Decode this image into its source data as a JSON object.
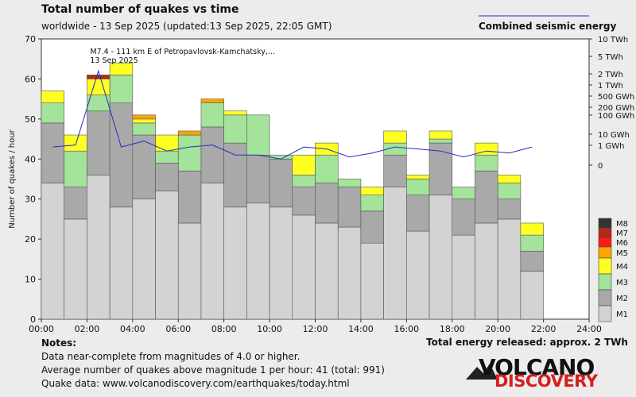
{
  "chart_data": {
    "type": "bar",
    "title": "Total number of quakes vs time",
    "subtitle": "worldwide - 13 Sep 2025 (updated:13 Sep 2025, 22:05 GMT)",
    "ylabel": "Number of quakes / hour",
    "ylim": [
      0,
      70
    ],
    "y_ticks": [
      "0",
      "10",
      "20",
      "30",
      "40",
      "50",
      "60",
      "70"
    ],
    "x_ticks": [
      "00:00",
      "02:00",
      "04:00",
      "06:00",
      "08:00",
      "10:00",
      "12:00",
      "14:00",
      "16:00",
      "18:00",
      "20:00",
      "22:00",
      "24:00"
    ],
    "right_axis_label": "Combined seismic energy",
    "right_ticks": [
      "10 TWh",
      "5 TWh",
      "2 TWh",
      "1 TWh",
      "500 GWh",
      "200 GWh",
      "100 GWh",
      "10 GWh",
      "1 GWh",
      "0"
    ],
    "magnitude_classes": [
      "M1",
      "M2",
      "M3",
      "M4",
      "M5",
      "M6",
      "M7",
      "M8"
    ],
    "colors": {
      "M1": "#d3d3d3",
      "M2": "#a9a9a9",
      "M3": "#a3e39a",
      "M4": "#ffff22",
      "M5": "#ffa500",
      "M6": "#ff1a1a",
      "M7": "#b22a18",
      "M8": "#333333",
      "energy_line": "#1f2fbf"
    },
    "series_hourly_cumulative": [
      {
        "hour": 0,
        "M1": 34,
        "M2": 49,
        "M3": 54,
        "M4": 57,
        "M5": 57,
        "M6": 57,
        "M7": 57
      },
      {
        "hour": 1,
        "M1": 25,
        "M2": 33,
        "M3": 42,
        "M4": 46,
        "M5": 46,
        "M6": 46,
        "M7": 46
      },
      {
        "hour": 2,
        "M1": 36,
        "M2": 52,
        "M3": 56,
        "M4": 60,
        "M5": 60,
        "M6": 60,
        "M7": 61
      },
      {
        "hour": 3,
        "M1": 28,
        "M2": 54,
        "M3": 61,
        "M4": 64,
        "M5": 64,
        "M6": 64,
        "M7": 64
      },
      {
        "hour": 4,
        "M1": 30,
        "M2": 46,
        "M3": 49,
        "M4": 50,
        "M5": 51,
        "M6": 51,
        "M7": 51
      },
      {
        "hour": 5,
        "M1": 32,
        "M2": 39,
        "M3": 42,
        "M4": 46,
        "M5": 46,
        "M6": 46,
        "M7": 46
      },
      {
        "hour": 6,
        "M1": 24,
        "M2": 37,
        "M3": 46,
        "M4": 46,
        "M5": 47,
        "M6": 47,
        "M7": 47
      },
      {
        "hour": 7,
        "M1": 34,
        "M2": 48,
        "M3": 54,
        "M4": 54,
        "M5": 55,
        "M6": 55,
        "M7": 55
      },
      {
        "hour": 8,
        "M1": 28,
        "M2": 44,
        "M3": 51,
        "M4": 52,
        "M5": 52,
        "M6": 52,
        "M7": 52
      },
      {
        "hour": 9,
        "M1": 29,
        "M2": 41,
        "M3": 51,
        "M4": 51,
        "M5": 51,
        "M6": 51,
        "M7": 51
      },
      {
        "hour": 10,
        "M1": 28,
        "M2": 40,
        "M3": 41,
        "M4": 41,
        "M5": 41,
        "M6": 41,
        "M7": 41
      },
      {
        "hour": 11,
        "M1": 26,
        "M2": 33,
        "M3": 36,
        "M4": 41,
        "M5": 41,
        "M6": 41,
        "M7": 41
      },
      {
        "hour": 12,
        "M1": 24,
        "M2": 34,
        "M3": 41,
        "M4": 44,
        "M5": 44,
        "M6": 44,
        "M7": 44
      },
      {
        "hour": 13,
        "M1": 23,
        "M2": 33,
        "M3": 35,
        "M4": 35,
        "M5": 35,
        "M6": 35,
        "M7": 35
      },
      {
        "hour": 14,
        "M1": 19,
        "M2": 27,
        "M3": 31,
        "M4": 33,
        "M5": 33,
        "M6": 33,
        "M7": 33
      },
      {
        "hour": 15,
        "M1": 33,
        "M2": 41,
        "M3": 44,
        "M4": 47,
        "M5": 47,
        "M6": 47,
        "M7": 47
      },
      {
        "hour": 16,
        "M1": 22,
        "M2": 31,
        "M3": 35,
        "M4": 36,
        "M5": 36,
        "M6": 36,
        "M7": 36
      },
      {
        "hour": 17,
        "M1": 31,
        "M2": 44,
        "M3": 45,
        "M4": 47,
        "M5": 47,
        "M6": 47,
        "M7": 47
      },
      {
        "hour": 18,
        "M1": 21,
        "M2": 30,
        "M3": 33,
        "M4": 33,
        "M5": 33,
        "M6": 33,
        "M7": 33
      },
      {
        "hour": 19,
        "M1": 24,
        "M2": 37,
        "M3": 41,
        "M4": 44,
        "M5": 44,
        "M6": 44,
        "M7": 44
      },
      {
        "hour": 20,
        "M1": 25,
        "M2": 30,
        "M3": 34,
        "M4": 36,
        "M5": 36,
        "M6": 36,
        "M7": 36
      },
      {
        "hour": 21,
        "M1": 12,
        "M2": 17,
        "M3": 21,
        "M4": 24,
        "M5": 24,
        "M6": 24,
        "M7": 24
      }
    ],
    "energy_line_level": [
      43,
      43.5,
      62,
      43,
      44.5,
      42,
      43,
      43.5,
      41,
      41,
      40,
      43,
      42.5,
      40.5,
      41.5,
      43,
      42.5,
      42,
      40.5,
      42,
      41.5,
      43
    ],
    "annotation": {
      "hour": 2,
      "line1": "M7.4 - 111 km E of Petropavlovsk-Kamchatsky,...",
      "line2": "13 Sep 2025"
    }
  },
  "legend": {
    "energy_label": "Combined seismic energy"
  },
  "notes": {
    "title": "Notes:",
    "line1": "Data near-complete from magnitudes of 4.0 or higher.",
    "line2": "Average number of quakes above magnitude 1 per hour: 41 (total: 991)",
    "line3": "Quake data: www.volcanodiscovery.com/earthquakes/today.html"
  },
  "energy_total": "Total energy released: approx. 2 TWh",
  "logo": {
    "top": "VOLCANO",
    "bottom": "DISCOVERY"
  }
}
